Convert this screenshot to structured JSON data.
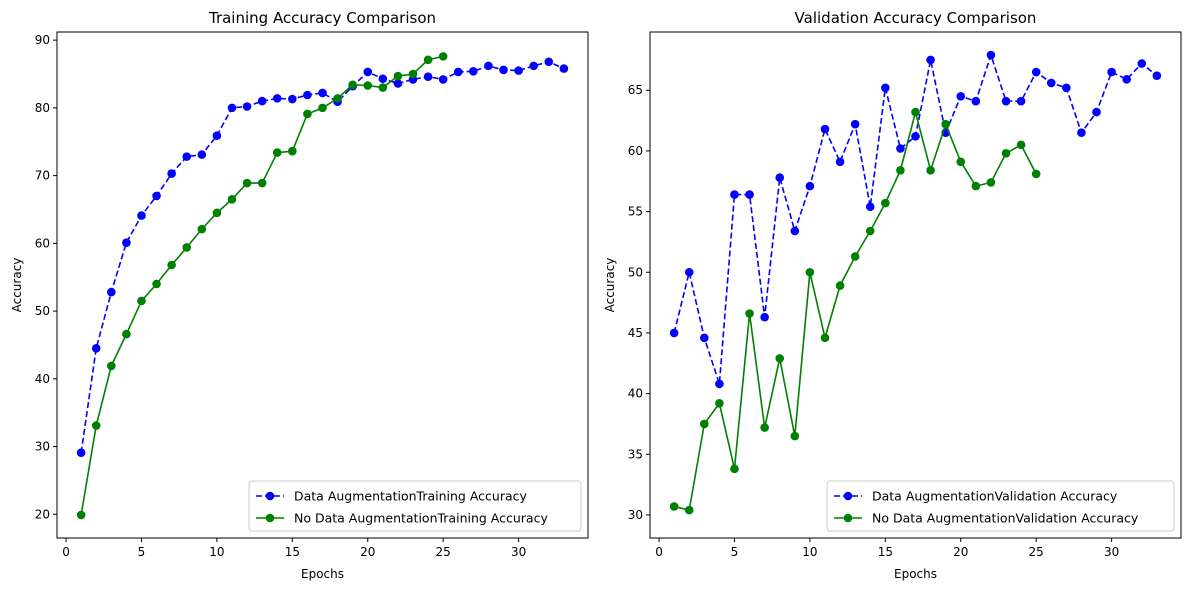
{
  "chart_data": [
    {
      "type": "line",
      "title": "Training Accuracy Comparison",
      "xlabel": "Epochs",
      "ylabel": "Accuracy",
      "xlim": [
        -0.6,
        34.6
      ],
      "ylim": [
        16.5,
        91.2
      ],
      "xticks": [
        0,
        5,
        10,
        15,
        20,
        25,
        30
      ],
      "yticks": [
        20,
        30,
        40,
        50,
        60,
        70,
        80,
        90
      ],
      "grid": false,
      "legend_position": "bottom-right",
      "series": [
        {
          "name": "Data AugmentationTraining Accuracy",
          "color": "#0000ff",
          "line_style": "dashed",
          "marker": "circle",
          "x": [
            1,
            2,
            3,
            4,
            5,
            6,
            7,
            8,
            9,
            10,
            11,
            12,
            13,
            14,
            15,
            16,
            17,
            18,
            19,
            20,
            21,
            22,
            23,
            24,
            25,
            26,
            27,
            28,
            29,
            30,
            31,
            32,
            33
          ],
          "values": [
            29.1,
            44.5,
            52.8,
            60.1,
            64.1,
            67.0,
            70.3,
            72.8,
            73.1,
            75.9,
            80.0,
            80.2,
            81.0,
            81.4,
            81.3,
            81.9,
            82.2,
            80.9,
            83.2,
            85.3,
            84.3,
            83.6,
            84.2,
            84.6,
            84.2,
            85.3,
            85.4,
            86.2,
            85.6,
            85.5,
            86.2,
            86.8,
            85.8
          ]
        },
        {
          "name": "No Data AugmentationTraining Accuracy",
          "color": "#008000",
          "line_style": "solid",
          "marker": "circle",
          "x": [
            1,
            2,
            3,
            4,
            5,
            6,
            7,
            8,
            9,
            10,
            11,
            12,
            13,
            14,
            15,
            16,
            17,
            18,
            19,
            20,
            21,
            22,
            23,
            24,
            25
          ],
          "values": [
            19.9,
            33.1,
            41.9,
            46.6,
            51.5,
            54.0,
            56.8,
            59.4,
            62.1,
            64.5,
            66.5,
            68.9,
            68.9,
            73.4,
            73.6,
            79.1,
            80.0,
            81.4,
            83.4,
            83.3,
            83.0,
            84.7,
            85.0,
            87.1,
            87.6
          ]
        }
      ]
    },
    {
      "type": "line",
      "title": "Validation Accuracy Comparison",
      "xlabel": "Epochs",
      "ylabel": "Accuracy",
      "xlim": [
        -0.6,
        34.6
      ],
      "ylim": [
        28.1,
        69.8
      ],
      "xticks": [
        0,
        5,
        10,
        15,
        20,
        25,
        30
      ],
      "yticks": [
        30,
        35,
        40,
        45,
        50,
        55,
        60,
        65
      ],
      "grid": false,
      "legend_position": "bottom-right",
      "series": [
        {
          "name": "Data AugmentationValidation Accuracy",
          "color": "#0000ff",
          "line_style": "dashed",
          "marker": "circle",
          "x": [
            1,
            2,
            3,
            4,
            5,
            6,
            7,
            8,
            9,
            10,
            11,
            12,
            13,
            14,
            15,
            16,
            17,
            18,
            19,
            20,
            21,
            22,
            23,
            24,
            25,
            26,
            27,
            28,
            29,
            30,
            31,
            32,
            33
          ],
          "values": [
            45.0,
            50.0,
            44.6,
            40.8,
            56.4,
            56.4,
            46.3,
            57.8,
            53.4,
            57.1,
            61.8,
            59.1,
            62.2,
            55.4,
            65.2,
            60.2,
            61.2,
            67.5,
            61.5,
            64.5,
            64.1,
            67.9,
            64.1,
            64.1,
            66.5,
            65.6,
            65.2,
            61.5,
            63.2,
            66.5,
            65.9,
            67.2,
            66.2
          ]
        },
        {
          "name": "No Data AugmentationValidation Accuracy",
          "color": "#008000",
          "line_style": "solid",
          "marker": "circle",
          "x": [
            1,
            2,
            3,
            4,
            5,
            6,
            7,
            8,
            9,
            10,
            11,
            12,
            13,
            14,
            15,
            16,
            17,
            18,
            19,
            20,
            21,
            22,
            23,
            24,
            25
          ],
          "values": [
            30.7,
            30.4,
            37.5,
            39.2,
            33.8,
            46.6,
            37.2,
            42.9,
            36.5,
            50.0,
            44.6,
            48.9,
            51.3,
            53.4,
            55.7,
            58.4,
            63.2,
            58.4,
            62.2,
            59.1,
            57.1,
            57.4,
            59.8,
            60.5,
            58.1
          ]
        }
      ]
    }
  ]
}
